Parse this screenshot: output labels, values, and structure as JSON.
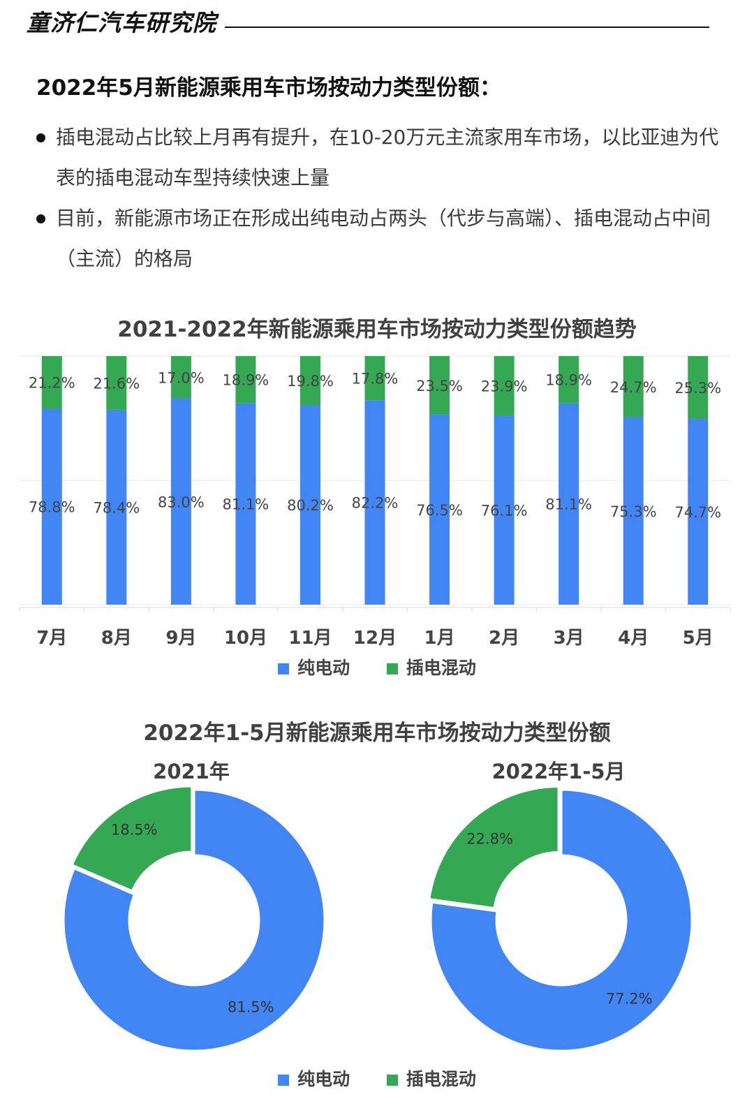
{
  "header": {
    "brand": "童济仁汽车研究院"
  },
  "heading": "2022年5月新能源乘用车市场按动力类型份额：",
  "bullets": [
    {
      "text": "插电混动占比较上月再有提升，在10-20万元主流家用车市场，以比亚迪为代表的插电混动车型持续快速上量"
    },
    {
      "text": "目前，新能源市场正在形成出纯电动占两头（代步与高端）、插电混动占中间（主流）的格局"
    }
  ],
  "colors": {
    "bev": "#4285f4",
    "phev": "#34a853"
  },
  "legend": {
    "bev": "纯电动",
    "phev": "插电混动"
  },
  "chart_data": [
    {
      "type": "bar",
      "stacked": true,
      "percent": true,
      "title": "2021-2022年新能源乘用车市场按动力类型份额趋势",
      "categories": [
        "7月",
        "8月",
        "9月",
        "10月",
        "11月",
        "12月",
        "1月",
        "2月",
        "3月",
        "4月",
        "5月"
      ],
      "series": [
        {
          "name": "纯电动",
          "color": "#4285f4",
          "values": [
            78.8,
            78.4,
            83.0,
            81.1,
            80.2,
            82.2,
            76.5,
            76.1,
            81.1,
            75.3,
            74.7
          ],
          "labels": [
            "78.8%",
            "78.4%",
            "83.0%",
            "81.1%",
            "80.2%",
            "82.2%",
            "76.5%",
            "76.1%",
            "81.1%",
            "75.3%",
            "74.7%"
          ]
        },
        {
          "name": "插电混动",
          "color": "#34a853",
          "values": [
            21.2,
            21.6,
            17.0,
            18.9,
            19.8,
            17.8,
            23.5,
            23.9,
            18.9,
            24.7,
            25.3
          ],
          "labels": [
            "21.2%",
            "21.6%",
            "17.0%",
            "18.9%",
            "19.8%",
            "17.8%",
            "23.5%",
            "23.9%",
            "18.9%",
            "24.7%",
            "25.3%"
          ]
        }
      ],
      "ylim": [
        0,
        100
      ],
      "grid": true,
      "legend_position": "bottom"
    },
    {
      "type": "pie",
      "donut": true,
      "title": "2022年1-5月新能源乘用车市场按动力类型份额",
      "charts": [
        {
          "title": "2021年",
          "slices": [
            {
              "name": "纯电动",
              "value": 81.5,
              "label": "81.5%",
              "color": "#4285f4"
            },
            {
              "name": "插电混动",
              "value": 18.5,
              "label": "18.5%",
              "color": "#34a853"
            }
          ]
        },
        {
          "title": "2022年1-5月",
          "slices": [
            {
              "name": "纯电动",
              "value": 77.2,
              "label": "77.2%",
              "color": "#4285f4"
            },
            {
              "name": "插电混动",
              "value": 22.8,
              "label": "22.8%",
              "color": "#34a853"
            }
          ]
        }
      ],
      "legend_position": "bottom"
    }
  ]
}
